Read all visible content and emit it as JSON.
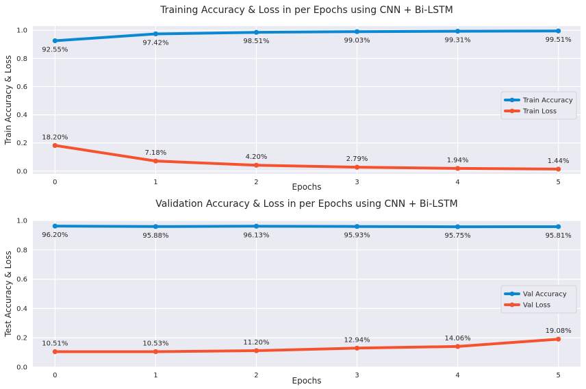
{
  "chart_data": [
    {
      "type": "line",
      "title": "Training Accuracy & Loss in per Epochs using CNN + Bi-LSTM",
      "xlabel": "Epochs",
      "ylabel": "Train Accuracy & Loss",
      "x": [
        0,
        1,
        2,
        3,
        4,
        5
      ],
      "xticks": [
        "0",
        "1",
        "2",
        "3",
        "4",
        "5"
      ],
      "yticks": [
        "0.0",
        "0.2",
        "0.4",
        "0.6",
        "0.8",
        "1.0"
      ],
      "ylim": [
        -0.02,
        1.03
      ],
      "grid": true,
      "legend_position": "center-right",
      "series": [
        {
          "name": "Train Accuracy",
          "color": "#0a89d2",
          "values": [
            0.9255,
            0.9742,
            0.9851,
            0.9903,
            0.9931,
            0.9951
          ],
          "labels": [
            "92.55%",
            "97.42%",
            "98.51%",
            "99.03%",
            "99.31%",
            "99.51%"
          ],
          "label_position": "below"
        },
        {
          "name": "Train Loss",
          "color": "#f5522f",
          "values": [
            0.182,
            0.0718,
            0.042,
            0.0279,
            0.0194,
            0.0144
          ],
          "labels": [
            "18.20%",
            "7.18%",
            "4.20%",
            "2.79%",
            "1.94%",
            "1.44%"
          ],
          "label_position": "above"
        }
      ]
    },
    {
      "type": "line",
      "title": "Validation Accuracy & Loss in per Epochs using CNN + Bi-LSTM",
      "xlabel": "Epochs",
      "ylabel": "Test Accuracy & Loss",
      "x": [
        0,
        1,
        2,
        3,
        4,
        5
      ],
      "xticks": [
        "0",
        "1",
        "2",
        "3",
        "4",
        "5"
      ],
      "yticks": [
        "0.0",
        "0.2",
        "0.4",
        "0.6",
        "0.8",
        "1.0"
      ],
      "ylim": [
        0,
        1
      ],
      "grid": true,
      "legend_position": "center-right",
      "series": [
        {
          "name": "Val Accuracy",
          "color": "#0a89d2",
          "values": [
            0.962,
            0.9588,
            0.9613,
            0.9593,
            0.9575,
            0.9581
          ],
          "labels": [
            "96.20%",
            "95.88%",
            "96.13%",
            "95.93%",
            "95.75%",
            "95.81%"
          ],
          "label_position": "below"
        },
        {
          "name": "Val Loss",
          "color": "#f5522f",
          "values": [
            0.1051,
            0.1053,
            0.112,
            0.1294,
            0.1406,
            0.1908
          ],
          "labels": [
            "10.51%",
            "10.53%",
            "11.20%",
            "12.94%",
            "14.06%",
            "19.08%"
          ],
          "label_position": "above"
        }
      ]
    }
  ]
}
